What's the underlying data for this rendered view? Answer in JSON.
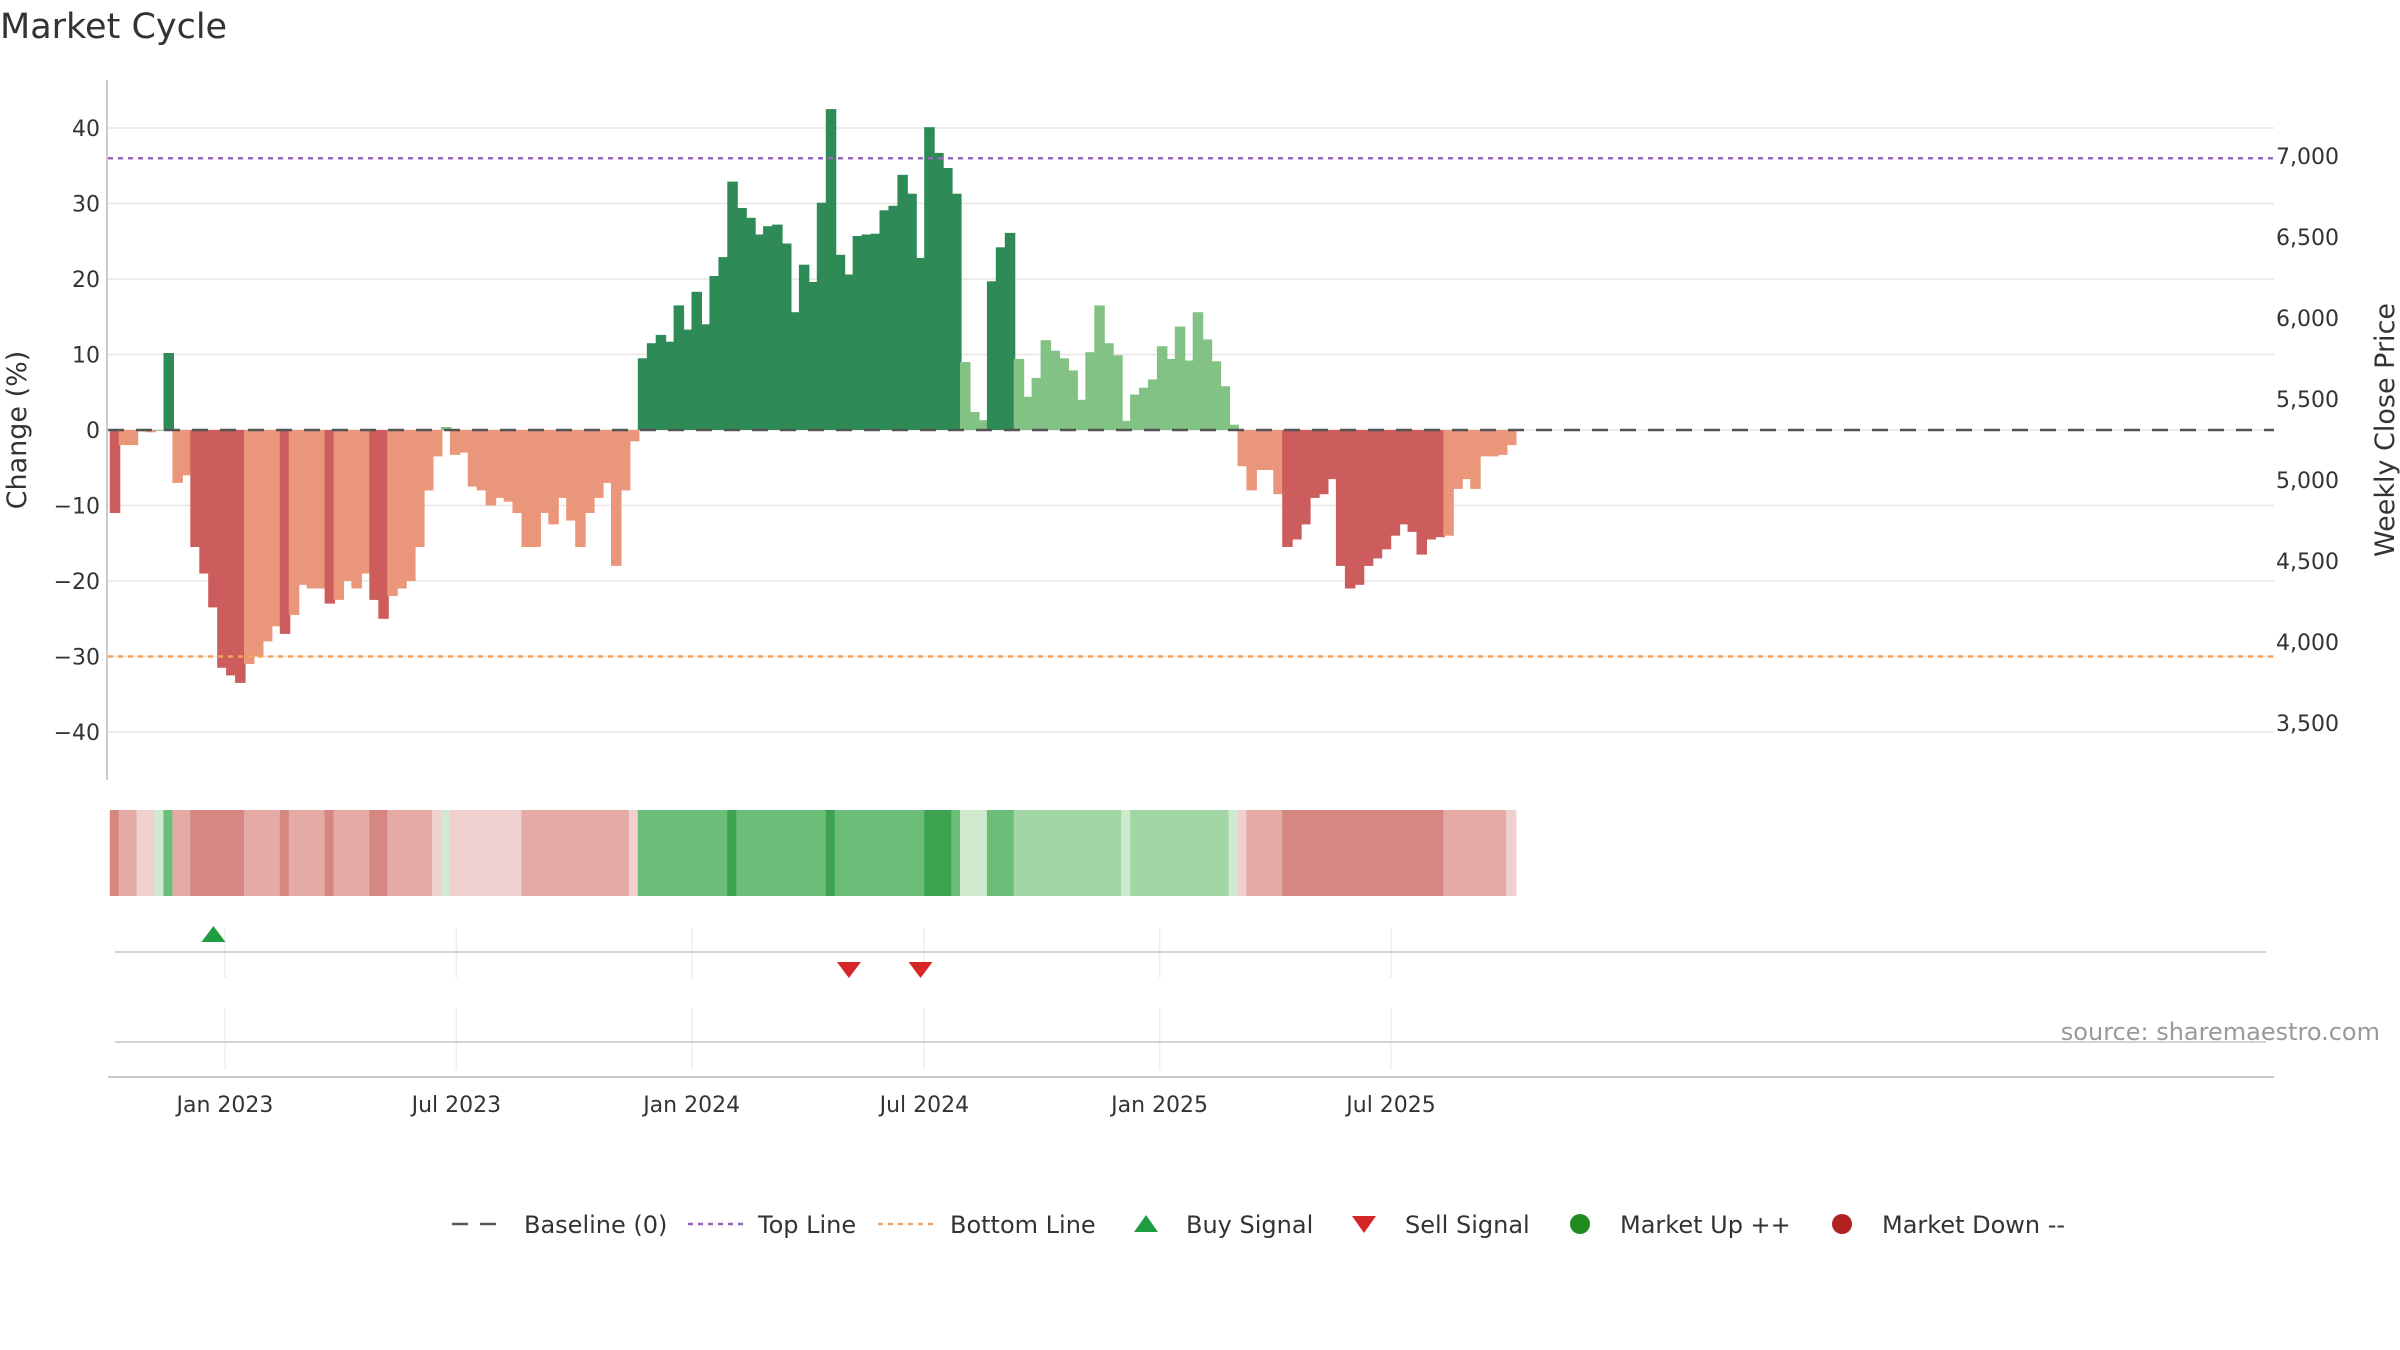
{
  "title": "Market Cycle",
  "source_note": "source: sharemaestro.com",
  "colors": {
    "dark_green": "#2e8b57",
    "light_green": "#82c285",
    "dark_red": "#cd5c5c",
    "light_red": "#e9967a",
    "top_line": "#9467bd",
    "bottom_line": "#f4a460",
    "baseline": "#555555",
    "buy": "#1e9e40",
    "sell": "#d62728",
    "market_up": "#228b22",
    "market_down": "#b22222",
    "grid": "#e6e6e6"
  },
  "legend": [
    {
      "key": "baseline",
      "label": "Baseline (0)",
      "symbol": "dash-line"
    },
    {
      "key": "top",
      "label": "Top Line",
      "symbol": "dot-line"
    },
    {
      "key": "bottom",
      "label": "Bottom Line",
      "symbol": "dot-line"
    },
    {
      "key": "buy",
      "label": "Buy Signal",
      "symbol": "triangle-up"
    },
    {
      "key": "sell",
      "label": "Sell Signal",
      "symbol": "triangle-down"
    },
    {
      "key": "up",
      "label": "Market Up ++",
      "symbol": "circle"
    },
    {
      "key": "down",
      "label": "Market Down --",
      "symbol": "circle"
    }
  ],
  "chart_data": {
    "type": "bar",
    "title": "Market Cycle",
    "ylabel": "Change (%)",
    "ylabel_right": "Weekly Close Price",
    "ylim": [
      -46,
      47
    ],
    "yticks": [
      40,
      30,
      20,
      10,
      0,
      -10,
      -20,
      -30,
      -40
    ],
    "ytick_labels": [
      "40",
      "30",
      "20",
      "10",
      "0",
      "−10",
      "−20",
      "−30",
      "−40"
    ],
    "y2ticks": [
      7000,
      6500,
      6000,
      5500,
      5000,
      4500,
      4000,
      3500
    ],
    "y2tick_labels": [
      "7,000",
      "6,500",
      "6,000",
      "5,500",
      "5,000",
      "4,500",
      "4,000",
      "3,500"
    ],
    "xticks": [
      {
        "date": "2023-01-01",
        "label": "Jan 2023"
      },
      {
        "date": "2023-07-01",
        "label": "Jul 2023"
      },
      {
        "date": "2024-01-01",
        "label": "Jan 2024"
      },
      {
        "date": "2024-07-01",
        "label": "Jul 2024"
      },
      {
        "date": "2025-01-01",
        "label": "Jan 2025"
      },
      {
        "date": "2025-07-01",
        "label": "Jul 2025"
      }
    ],
    "top_line": 36,
    "bottom_line": -30,
    "baseline": 0,
    "grid": true,
    "legend_position": "bottom",
    "start_week": "2022-10-07",
    "values": [
      -11,
      -2,
      -2,
      -0.2,
      -0.3,
      0,
      10.2,
      -7,
      -6,
      -15.5,
      -19,
      -23.5,
      -31.5,
      -32.5,
      -33.5,
      -31,
      -30,
      -28,
      -26,
      -27,
      -24.5,
      -20.5,
      -21,
      -21,
      -23,
      -22.5,
      -20,
      -21,
      -19,
      -22.5,
      -25,
      -22,
      -21,
      -20,
      -15.5,
      -8,
      -3.5,
      0.4,
      -3.3,
      -3,
      -7.5,
      -8,
      -10,
      -9,
      -9.5,
      -11,
      -15.5,
      -15.5,
      -11,
      -12.5,
      -9,
      -12,
      -15.5,
      -11,
      -9,
      -7,
      -18,
      -8,
      -1.5,
      9.5,
      11.5,
      12.6,
      11.7,
      16.5,
      13.3,
      18.3,
      14,
      20.4,
      22.9,
      32.9,
      29.4,
      28.1,
      25.9,
      27,
      27.2,
      24.7,
      15.6,
      21.9,
      19.6,
      30.1,
      42.5,
      23.2,
      20.6,
      25.7,
      25.9,
      26,
      29.1,
      29.7,
      33.8,
      31.3,
      22.8,
      40.1,
      36.7,
      34.7,
      31.3,
      9,
      2.4,
      1.3,
      19.7,
      24.2,
      26.1,
      9.4,
      4.4,
      6.9,
      11.9,
      10.5,
      9.5,
      7.9,
      4,
      10.3,
      16.5,
      11.5,
      9.9,
      1.2,
      4.7,
      5.6,
      6.7,
      11.1,
      9.4,
      13.7,
      9.2,
      15.6,
      12,
      9.1,
      5.8,
      0.7,
      -4.8,
      -8,
      -5.3,
      -5.3,
      -8.5,
      -15.5,
      -14.5,
      -12.5,
      -9,
      -8.5,
      -6.5,
      -18,
      -21,
      -20.5,
      -18,
      -17,
      -15.8,
      -14,
      -12.5,
      -13.5,
      -16.5,
      -14.5,
      -14.2,
      -14,
      -7.8,
      -6.5,
      -7.8,
      -3.5,
      -3.5,
      -3.3,
      -2
    ],
    "strength": [
      3,
      2,
      2,
      1,
      1,
      1,
      3,
      2,
      2,
      3,
      3,
      3,
      3,
      3,
      3,
      2,
      2,
      2,
      2,
      3,
      2,
      2,
      2,
      2,
      3,
      2,
      2,
      2,
      2,
      3,
      3,
      2,
      2,
      2,
      2,
      2,
      1,
      1,
      1,
      1,
      1,
      1,
      1,
      1,
      1,
      1,
      2,
      2,
      2,
      2,
      2,
      2,
      2,
      2,
      2,
      2,
      2,
      2,
      1,
      3,
      3,
      3,
      3,
      3,
      3,
      3,
      3,
      3,
      3,
      4,
      3,
      3,
      3,
      3,
      3,
      3,
      3,
      3,
      3,
      3,
      4,
      3,
      3,
      3,
      3,
      3,
      3,
      3,
      3,
      3,
      3,
      4,
      4,
      4,
      3,
      1,
      1,
      1,
      3,
      3,
      3,
      2,
      2,
      2,
      2,
      2,
      2,
      2,
      2,
      2,
      2,
      2,
      2,
      1,
      2,
      2,
      2,
      2,
      2,
      2,
      2,
      2,
      2,
      2,
      2,
      1,
      1,
      2,
      2,
      2,
      2,
      3,
      3,
      3,
      3,
      3,
      3,
      3,
      3,
      3,
      3,
      3,
      3,
      3,
      3,
      3,
      3,
      3,
      3,
      2,
      2,
      2,
      2,
      2,
      2,
      2,
      1,
      1
    ],
    "buy_signals": [
      "2022-12-23"
    ],
    "sell_signals": [
      "2024-05-03",
      "2024-06-28"
    ]
  }
}
